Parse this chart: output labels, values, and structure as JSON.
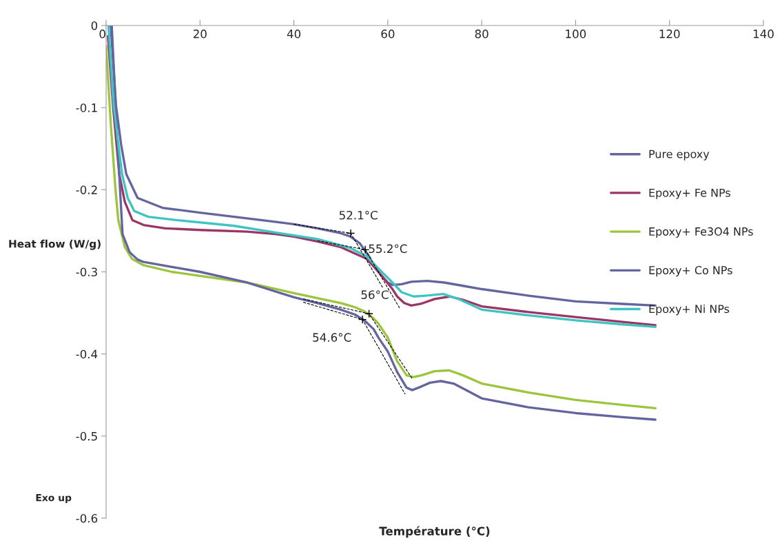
{
  "chart_data": {
    "type": "line",
    "xlabel": "Température (°C)",
    "ylabel": "Heat flow (W/g)",
    "xlim": [
      0,
      140
    ],
    "xticks": [
      0,
      20,
      40,
      60,
      80,
      100,
      120,
      140
    ],
    "ylim": [
      -0.6,
      0
    ],
    "yticks": [
      -0.6,
      -0.5,
      -0.4,
      -0.3,
      -0.2,
      -0.1,
      0
    ],
    "grid": false,
    "legend": "right",
    "line_style": "solid",
    "marker": "none",
    "series": [
      {
        "name": "Pure epoxy",
        "color": "#6464a0",
        "x": [
          1.0,
          2.1,
          3.2,
          4.3,
          6.7,
          12,
          20,
          27.3,
          36,
          40,
          45,
          50,
          52,
          54,
          56,
          57,
          58,
          60,
          61,
          63,
          65,
          68.4,
          72,
          76,
          80,
          90,
          100,
          110,
          117
        ],
        "values": [
          0,
          -0.097,
          -0.145,
          -0.181,
          -0.21,
          -0.222,
          -0.228,
          -0.233,
          -0.239,
          -0.242,
          -0.247,
          -0.253,
          -0.257,
          -0.265,
          -0.281,
          -0.292,
          -0.3,
          -0.313,
          -0.316,
          -0.315,
          -0.312,
          -0.311,
          -0.313,
          -0.317,
          -0.321,
          -0.329,
          -0.336,
          -0.339,
          -0.341
        ]
      },
      {
        "name": "Epoxy+ Fe NPs",
        "color": "#9a3566",
        "x": [
          0.4,
          1.5,
          2.8,
          4,
          5.6,
          8,
          12.6,
          20,
          30,
          36,
          40,
          45,
          50,
          52,
          55.5,
          58,
          60,
          61,
          62,
          63.5,
          65,
          67,
          70,
          73.2,
          76,
          80,
          90,
          100,
          110,
          117
        ],
        "values": [
          -0.013,
          -0.1,
          -0.181,
          -0.215,
          -0.237,
          -0.243,
          -0.247,
          -0.249,
          -0.251,
          -0.254,
          -0.257,
          -0.263,
          -0.27,
          -0.275,
          -0.284,
          -0.3,
          -0.314,
          -0.321,
          -0.33,
          -0.338,
          -0.341,
          -0.339,
          -0.333,
          -0.33,
          -0.334,
          -0.342,
          -0.349,
          -0.355,
          -0.361,
          -0.365
        ]
      },
      {
        "name": "Epoxy+ Fe3O4 NPs",
        "color": "#9bc53d",
        "x": [
          0,
          1,
          2,
          2.6,
          4,
          5.5,
          8,
          14,
          20,
          30,
          40,
          45,
          50,
          53,
          55,
          57,
          58,
          60,
          62,
          64,
          65.5,
          67.2,
          70,
          73.1,
          76,
          80,
          90,
          100,
          110,
          117
        ],
        "values": [
          -0.025,
          -0.12,
          -0.2,
          -0.237,
          -0.27,
          -0.284,
          -0.292,
          -0.3,
          -0.305,
          -0.313,
          -0.326,
          -0.332,
          -0.338,
          -0.343,
          -0.348,
          -0.357,
          -0.363,
          -0.38,
          -0.409,
          -0.426,
          -0.428,
          -0.426,
          -0.421,
          -0.42,
          -0.426,
          -0.436,
          -0.447,
          -0.456,
          -0.462,
          -0.466
        ]
      },
      {
        "name": "Epoxy+ Co NPs",
        "color": "#6464a0",
        "x": [
          1.2,
          2.3,
          3.5,
          5,
          6.7,
          8,
          14,
          20,
          30,
          40,
          45,
          50,
          53,
          55,
          57,
          58,
          60,
          62,
          64,
          65.2,
          67,
          69,
          71.3,
          74,
          77,
          80,
          90,
          100,
          110,
          117
        ],
        "values": [
          0,
          -0.13,
          -0.254,
          -0.276,
          -0.285,
          -0.288,
          -0.294,
          -0.3,
          -0.313,
          -0.331,
          -0.338,
          -0.346,
          -0.352,
          -0.359,
          -0.37,
          -0.38,
          -0.397,
          -0.422,
          -0.441,
          -0.444,
          -0.44,
          -0.435,
          -0.433,
          -0.436,
          -0.445,
          -0.454,
          -0.465,
          -0.472,
          -0.477,
          -0.48
        ]
      },
      {
        "name": "Epoxy+ Ni NPs",
        "color": "#3fc4c4",
        "x": [
          0.5,
          1.6,
          3.4,
          4.6,
          6.0,
          9,
          15,
          27.3,
          36,
          45,
          52,
          55.5,
          58,
          61,
          63,
          65.5,
          68,
          71.8,
          75,
          80,
          90,
          100,
          110,
          117
        ],
        "values": [
          0,
          -0.097,
          -0.181,
          -0.21,
          -0.226,
          -0.233,
          -0.237,
          -0.244,
          -0.252,
          -0.26,
          -0.271,
          -0.281,
          -0.296,
          -0.313,
          -0.325,
          -0.33,
          -0.329,
          -0.327,
          -0.333,
          -0.346,
          -0.353,
          -0.359,
          -0.364,
          -0.367
        ]
      },
      {
        "color": "#000000",
        "line_style": "dashed",
        "x": [
          40,
          52.1,
          59
        ],
        "values": [
          -0.242,
          -0.253,
          -0.32
        ]
      },
      {
        "color": "#000000",
        "line_style": "dashed",
        "x": [
          45,
          55.2,
          62.5
        ],
        "values": [
          -0.262,
          -0.273,
          -0.344
        ]
      },
      {
        "color": "#000000",
        "line_style": "dashed",
        "x": [
          42,
          56,
          65.2
        ],
        "values": [
          -0.333,
          -0.351,
          -0.43
        ]
      },
      {
        "color": "#000000",
        "line_style": "dashed",
        "x": [
          42,
          54.6,
          63.7
        ],
        "values": [
          -0.337,
          -0.358,
          -0.449
        ]
      }
    ],
    "annotations": [
      {
        "text": "52.1°C",
        "x": 52.1,
        "y": -0.253
      },
      {
        "text": "55.2°C",
        "x": 55.2,
        "y": -0.273
      },
      {
        "text": "56°C",
        "x": 56,
        "y": -0.351
      },
      {
        "text": "54.6°C",
        "x": 54.6,
        "y": -0.358
      },
      "Exo up"
    ]
  }
}
